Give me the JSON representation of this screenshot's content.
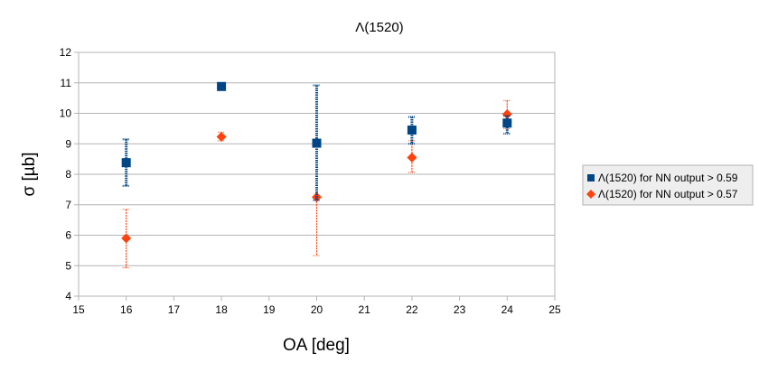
{
  "chart_data": {
    "type": "scatter",
    "title": "Λ(1520)",
    "xlabel": "OA [deg]",
    "ylabel": "σ [µb]",
    "xlim": [
      15,
      25
    ],
    "ylim": [
      4,
      12
    ],
    "xticks": [
      "15",
      "16",
      "17",
      "18",
      "19",
      "20",
      "21",
      "22",
      "23",
      "24",
      "25"
    ],
    "yticks": [
      "4",
      "5",
      "6",
      "7",
      "8",
      "9",
      "10",
      "11",
      "12"
    ],
    "grid": true,
    "legend_position": "right",
    "series": [
      {
        "name": "Λ(1520) for NN output > 0.59",
        "color": "#004586",
        "marker": "square",
        "points": [
          {
            "x": 16,
            "y": 8.38,
            "err_low": 7.62,
            "err_high": 9.15
          },
          {
            "x": 18,
            "y": 10.88,
            "err_low": 10.88,
            "err_high": 10.88
          },
          {
            "x": 20,
            "y": 9.02,
            "err_low": 7.15,
            "err_high": 10.92
          },
          {
            "x": 22,
            "y": 9.45,
            "err_low": 9.0,
            "err_high": 9.88
          },
          {
            "x": 24,
            "y": 9.68,
            "err_low": 9.33,
            "err_high": 9.92
          }
        ]
      },
      {
        "name": "Λ(1520) for NN output > 0.57",
        "color": "#ff420e",
        "marker": "diamond",
        "points": [
          {
            "x": 16,
            "y": 5.9,
            "err_low": 4.93,
            "err_high": 6.85
          },
          {
            "x": 18,
            "y": 9.23,
            "err_low": 9.1,
            "err_high": 9.38
          },
          {
            "x": 20,
            "y": 7.25,
            "err_low": 5.33,
            "err_high": 7.28
          },
          {
            "x": 22,
            "y": 8.55,
            "err_low": 8.06,
            "err_high": 9.1
          },
          {
            "x": 24,
            "y": 9.97,
            "err_low": 9.5,
            "err_high": 10.42
          }
        ]
      }
    ]
  }
}
